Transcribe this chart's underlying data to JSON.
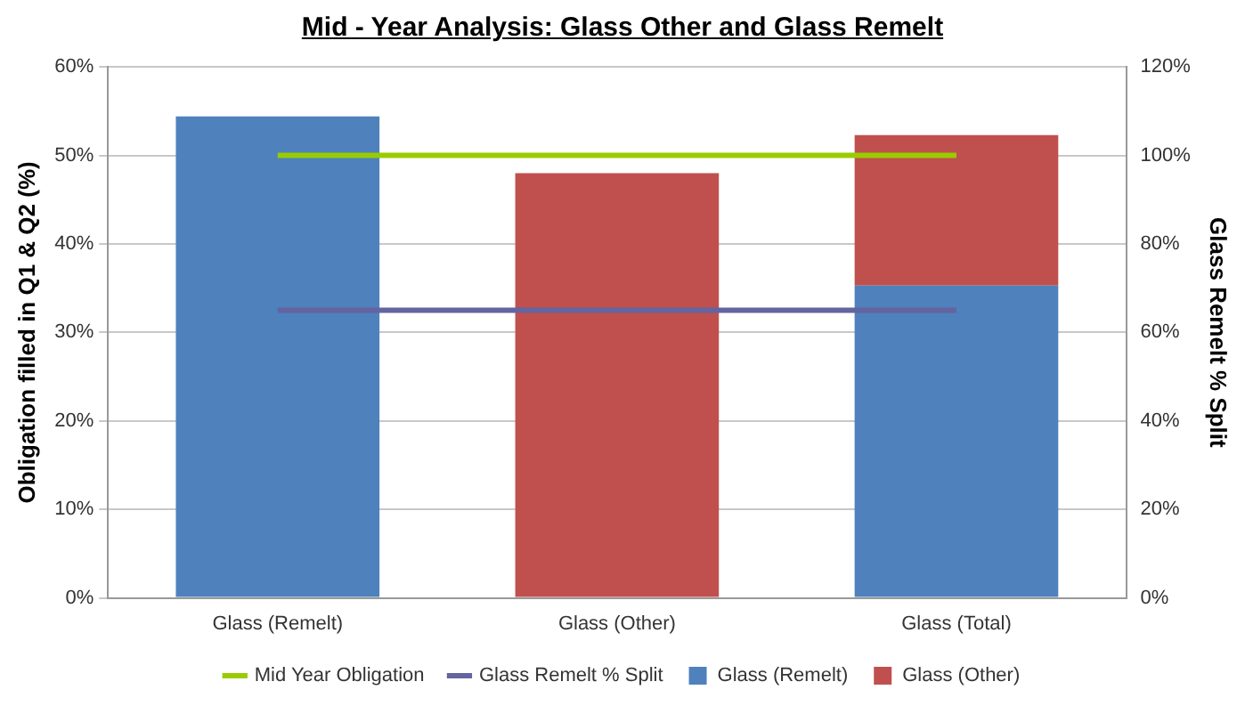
{
  "chart_data": {
    "type": "bar",
    "title": "Mid - Year Analysis: Glass Other and Glass Remelt",
    "ylabel": "Obligation filled in Q1 & Q2 (%)",
    "y2label": "Glass Remelt % Split",
    "categories": [
      "Glass (Remelt)",
      "Glass (Other)",
      "Glass (Total)"
    ],
    "stacked": true,
    "series": [
      {
        "name": "Glass (Remelt)",
        "color": "#4f81bd",
        "values": [
          54.4,
          null,
          35.3
        ]
      },
      {
        "name": "Glass (Other)",
        "color": "#c0504d",
        "values": [
          null,
          48.0,
          17.0
        ]
      },
      {
        "name": "Mid Year Obligation",
        "type": "line",
        "axis": "y2",
        "color": "#99cc00",
        "values": [
          100,
          100,
          100
        ]
      },
      {
        "name": "Glass Remelt % Split",
        "type": "line",
        "axis": "y2",
        "color": "#6464a0",
        "values": [
          65,
          65,
          65
        ]
      }
    ],
    "ylim": [
      0,
      60
    ],
    "yticks": [
      {
        "value": 0,
        "label": "0%"
      },
      {
        "value": 10,
        "label": "10%"
      },
      {
        "value": 20,
        "label": "20%"
      },
      {
        "value": 30,
        "label": "30%"
      },
      {
        "value": 40,
        "label": "40%"
      },
      {
        "value": 50,
        "label": "50%"
      },
      {
        "value": 60,
        "label": "60%"
      }
    ],
    "y2lim": [
      0,
      120
    ],
    "y2ticks": [
      {
        "value": 0,
        "label": "0%"
      },
      {
        "value": 20,
        "label": "20%"
      },
      {
        "value": 40,
        "label": "40%"
      },
      {
        "value": 60,
        "label": "60%"
      },
      {
        "value": 80,
        "label": "80%"
      },
      {
        "value": 100,
        "label": "100%"
      },
      {
        "value": 120,
        "label": "120%"
      }
    ],
    "grid": "y",
    "legend": "bottom",
    "marker": "none",
    "line_style": "solid"
  }
}
